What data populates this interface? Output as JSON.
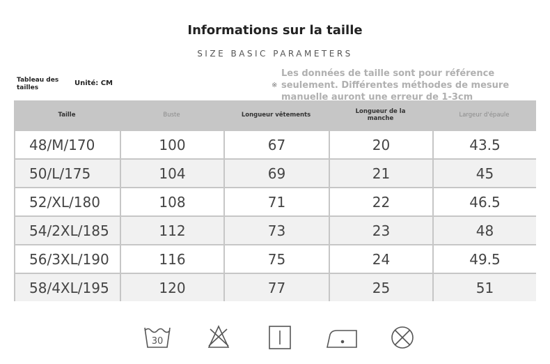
{
  "header": {
    "title": "Informations sur la taille",
    "subtitle": "SIZE BASIC PARAMETERS"
  },
  "table_label": "Tableau des tailles",
  "unit": "Unité: CM",
  "note": {
    "mark": "※",
    "lines": [
      "Les données de taille sont pour référence",
      "seulement. Différentes méthodes de mesure",
      "manuelle auront une erreur de 1-3cm"
    ]
  },
  "table": {
    "columns": [
      "Taille",
      "Buste",
      "Longueur vêtements",
      "Longueur de la manche",
      "Largeur d'épaule"
    ],
    "rows": [
      [
        "48/M/170",
        "100",
        "67",
        "20",
        "43.5"
      ],
      [
        "50/L/175",
        "104",
        "69",
        "21",
        "45"
      ],
      [
        "52/XL/180",
        "108",
        "71",
        "22",
        "46.5"
      ],
      [
        "54/2XL/185",
        "112",
        "73",
        "23",
        "48"
      ],
      [
        "56/3XL/190",
        "116",
        "75",
        "24",
        "49.5"
      ],
      [
        "58/4XL/195",
        "120",
        "77",
        "25",
        "51"
      ]
    ]
  },
  "icons": {
    "wash_temp": "30"
  }
}
